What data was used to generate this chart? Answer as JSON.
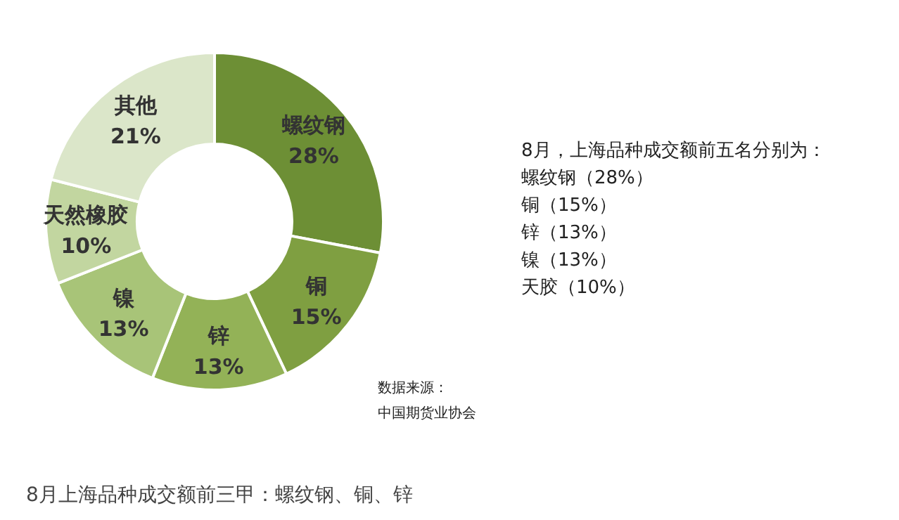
{
  "chart_data": {
    "type": "donut",
    "categories": [
      "螺纹钢",
      "铜",
      "锌",
      "镍",
      "天然橡胶",
      "其他"
    ],
    "values": [
      28,
      15,
      13,
      13,
      10,
      21
    ],
    "value_labels": [
      "28%",
      "15%",
      "13%",
      "13%",
      "10%",
      "21%"
    ],
    "colors": [
      "#6d8f35",
      "#7f9f41",
      "#93b257",
      "#a8c478",
      "#c2d6a0",
      "#dbe6c9"
    ],
    "annotations": [
      "8月，上海品种成交额前五名分别为：",
      "螺纹钢（28%）",
      "铜（15%）",
      "锌（13%）",
      "镍（13%）",
      "天胶（10%）",
      "数据来源：",
      "中国期货业协会",
      "8月上海品种成交额前三甲：螺纹钢、铜、锌"
    ]
  }
}
